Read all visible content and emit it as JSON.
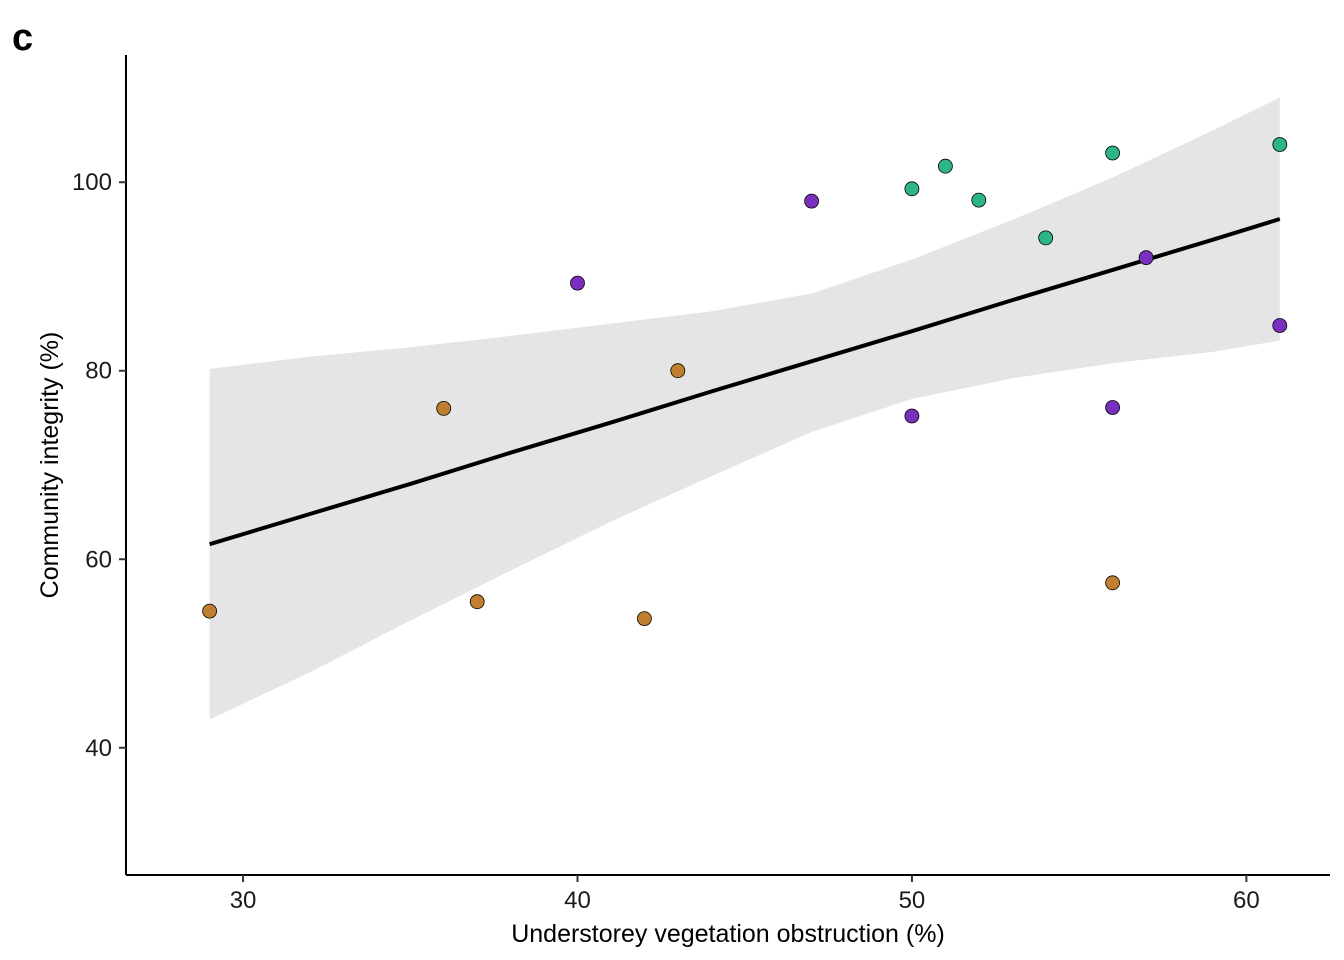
{
  "panel_label": "c",
  "chart_data": {
    "type": "scatter",
    "title": "",
    "xlabel": "Understorey vegetation obstruction (%)",
    "ylabel": "Community integrity (%)",
    "xlim": [
      26.5,
      62.5
    ],
    "ylim": [
      26.5,
      113.5
    ],
    "x_ticks": [
      30,
      40,
      50,
      60
    ],
    "y_ticks": [
      40,
      60,
      80,
      100
    ],
    "grid": false,
    "legend": "none",
    "series": [
      {
        "color": "#C07F2E",
        "points": [
          [
            29,
            54.5
          ],
          [
            36,
            76
          ],
          [
            37,
            55.5
          ],
          [
            42,
            53.7
          ],
          [
            43,
            80
          ],
          [
            56,
            57.5
          ]
        ]
      },
      {
        "color": "#7B2FBE",
        "points": [
          [
            40,
            89.3
          ],
          [
            47,
            98
          ],
          [
            50,
            75.2
          ],
          [
            56,
            76.1
          ],
          [
            57,
            92
          ],
          [
            61,
            84.8
          ]
        ]
      },
      {
        "color": "#2DB585",
        "points": [
          [
            50,
            99.3
          ],
          [
            51,
            101.7
          ],
          [
            52,
            98.1
          ],
          [
            54,
            94.1
          ],
          [
            56,
            103.1
          ],
          [
            61,
            104
          ]
        ]
      }
    ],
    "fit_line": {
      "color": "#000000",
      "x": [
        29,
        32,
        35,
        38,
        41,
        44,
        47,
        50,
        53,
        56,
        59,
        61
      ],
      "y": [
        61.6,
        64.8,
        68.0,
        71.3,
        74.5,
        77.8,
        81.0,
        84.2,
        87.5,
        90.7,
        93.9,
        96.1
      ]
    },
    "confidence_band": {
      "color": "#E5E5E5",
      "x": [
        29,
        32,
        35,
        38,
        41,
        44,
        47,
        50,
        53,
        56,
        59,
        61
      ],
      "upper": [
        80.2,
        81.5,
        82.5,
        83.7,
        85.0,
        86.3,
        88.2,
        91.8,
        96.0,
        100.5,
        105.5,
        109.0
      ],
      "lower": [
        43.0,
        48.0,
        53.5,
        58.8,
        64.0,
        68.8,
        73.5,
        77.0,
        79.2,
        80.8,
        82.0,
        83.2
      ]
    }
  }
}
